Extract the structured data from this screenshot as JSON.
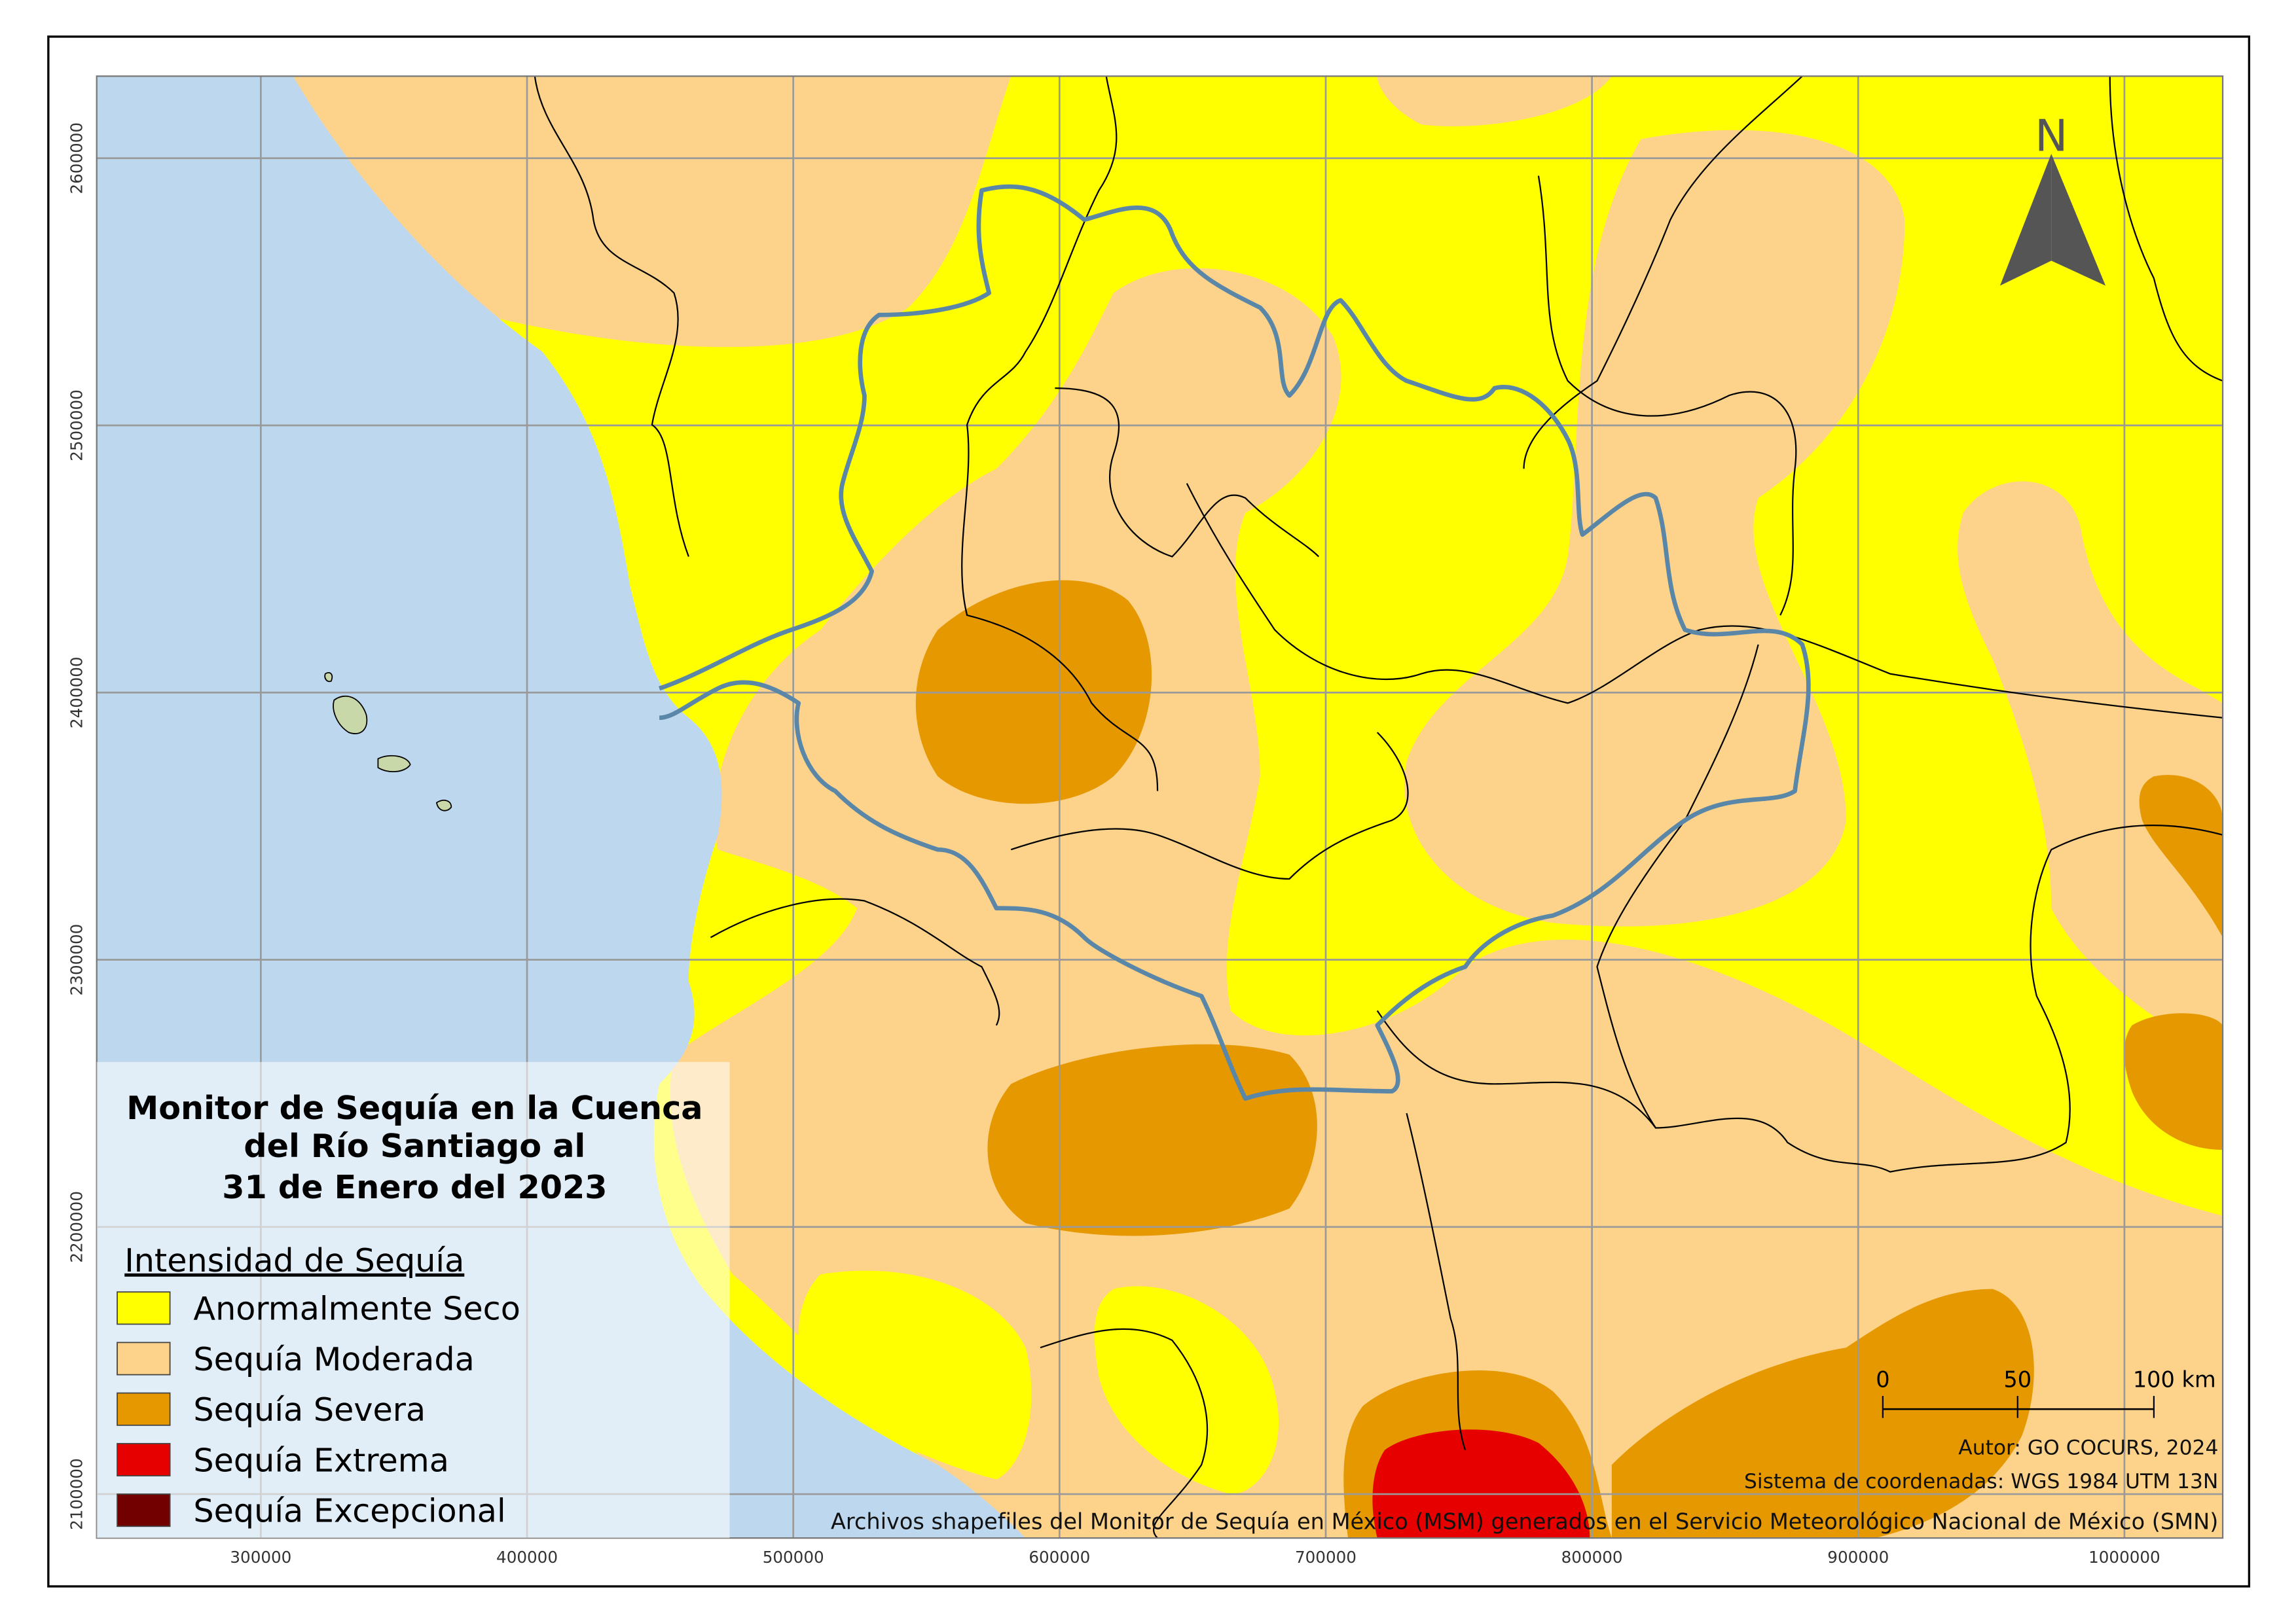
{
  "map": {
    "title_lines": [
      "Monitor de Sequía en la Cuenca",
      "del Río Santiago al",
      "31 de Enero del 2023"
    ],
    "legend": {
      "title": "Intensidad de Sequía",
      "items": [
        {
          "label": "Anormalmente Seco",
          "color": "#ffff00"
        },
        {
          "label": "Sequía Moderada",
          "color": "#fdd38b"
        },
        {
          "label": "Sequía Severa",
          "color": "#e59800"
        },
        {
          "label": "Sequía Extrema",
          "color": "#e60000"
        },
        {
          "label": "Sequía Excepcional",
          "color": "#730000"
        }
      ]
    },
    "xlim": [
      238360,
      1036930
    ],
    "ylim": [
      2083560,
      2630700
    ],
    "xticks": [
      300000,
      400000,
      500000,
      600000,
      700000,
      800000,
      900000,
      1000000
    ],
    "yticks": [
      2100000,
      2200000,
      2300000,
      2400000,
      2500000,
      2600000
    ],
    "north": "N",
    "scale_bar": [
      "0",
      "50",
      "100 km"
    ],
    "credits": [
      "Autor: GO COCURS, 2024",
      "Sistema de coordenadas: WGS 1984 UTM 13N",
      "Archivos shapefiles del Monitor de Sequía en México (MSM) generados en el Servicio Meteorológico Nacional de México (SMN)"
    ]
  }
}
